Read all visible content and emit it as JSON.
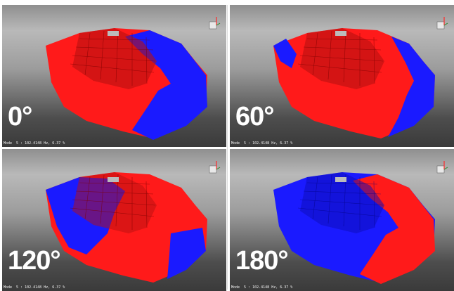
{
  "panels": [
    {
      "angle": "0°",
      "mode_text": "Mode  5 : 102.4148 Hz, 6.37 %"
    },
    {
      "angle": "60°",
      "mode_text": "Mode  5 : 102.4148 Hz, 6.37 %"
    },
    {
      "angle": "120°",
      "mode_text": "Mode  5 : 102.4148 Hz, 6.37 %"
    },
    {
      "angle": "180°",
      "mode_text": "Mode  5 : 102.4148 Hz, 6.37 %"
    }
  ],
  "colors": {
    "positive": "#ff1a1a",
    "negative": "#1a1aff",
    "patch": "#bbbbbb"
  },
  "icons": {
    "axis_triad": "axis-triad-icon"
  }
}
